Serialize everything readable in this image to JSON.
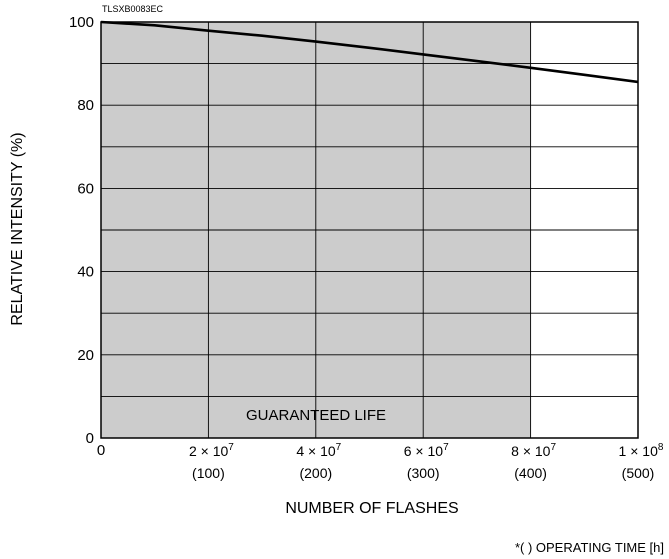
{
  "chart_data": {
    "type": "line",
    "code": "TLSXB0083EC",
    "title": "",
    "xlabel": "NUMBER OF FLASHES",
    "ylabel": "RELATIVE INTENSITY (%)",
    "footnote": "*( ) OPERATING TIME [h]",
    "shaded_region_label": "GUARANTEED LIFE",
    "shaded_region_x": [
      0,
      80000000
    ],
    "xlim": [
      0,
      100000000
    ],
    "ylim": [
      0,
      100
    ],
    "grid": true,
    "x_ticks": [
      {
        "value": 0,
        "mantissa": "0",
        "exponent": "",
        "hours": ""
      },
      {
        "value": 20000000,
        "mantissa": "2 × 10",
        "exponent": "7",
        "hours": "(100)"
      },
      {
        "value": 40000000,
        "mantissa": "4 × 10",
        "exponent": "7",
        "hours": "(200)"
      },
      {
        "value": 60000000,
        "mantissa": "6 × 10",
        "exponent": "7",
        "hours": "(300)"
      },
      {
        "value": 80000000,
        "mantissa": "8 × 10",
        "exponent": "7",
        "hours": "(400)"
      },
      {
        "value": 100000000,
        "mantissa": "1 × 10",
        "exponent": "8",
        "hours": "(500)"
      }
    ],
    "y_ticks": [
      0,
      20,
      40,
      60,
      80,
      100
    ],
    "series": [
      {
        "x": [
          0,
          10000000,
          20000000,
          30000000,
          40000000,
          50000000,
          60000000,
          70000000,
          80000000,
          90000000,
          100000000
        ],
        "y": [
          100,
          99.2,
          97.9,
          96.7,
          95.3,
          93.8,
          92.2,
          90.6,
          89.0,
          87.3,
          85.6
        ]
      }
    ],
    "line_color": "#000000",
    "shade_color": "#cccccc"
  }
}
